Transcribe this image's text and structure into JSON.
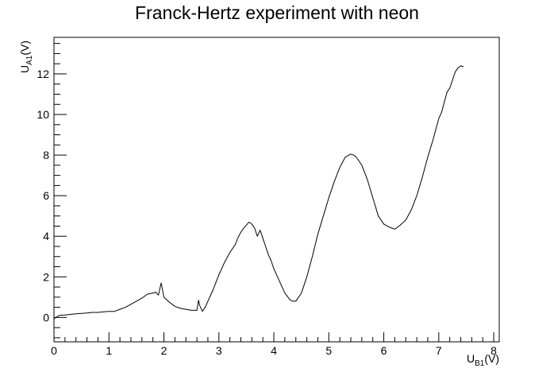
{
  "chart_data": {
    "type": "line",
    "title": "Franck-Hertz experiment with neon",
    "xlabel": {
      "main": "U",
      "sub": "B1",
      "unit": "(V)"
    },
    "ylabel": {
      "main": "U",
      "sub": "A1",
      "unit": "(V)"
    },
    "xlim": [
      0,
      8.1
    ],
    "ylim": [
      -1.2,
      13.8
    ],
    "x_ticks": [
      0,
      1,
      2,
      3,
      4,
      5,
      6,
      7,
      8
    ],
    "y_ticks": [
      0,
      2,
      4,
      6,
      8,
      10,
      12
    ],
    "grid": false,
    "line_color": "#000000",
    "series": [
      {
        "x": [
          0.0,
          0.1,
          0.2,
          0.3,
          0.4,
          0.5,
          0.6,
          0.7,
          0.8,
          0.9,
          1.0,
          1.1,
          1.2,
          1.3,
          1.4,
          1.5,
          1.6,
          1.7,
          1.8,
          1.85,
          1.9,
          1.95,
          2.0,
          2.1,
          2.2,
          2.3,
          2.4,
          2.5,
          2.6,
          2.63,
          2.65,
          2.7,
          2.75,
          2.8,
          2.9,
          3.0,
          3.1,
          3.2,
          3.3,
          3.35,
          3.4,
          3.45,
          3.5,
          3.55,
          3.6,
          3.65,
          3.7,
          3.75,
          3.8,
          3.85,
          3.9,
          3.95,
          4.0,
          4.1,
          4.2,
          4.3,
          4.35,
          4.4,
          4.5,
          4.6,
          4.7,
          4.8,
          4.9,
          5.0,
          5.1,
          5.2,
          5.3,
          5.4,
          5.45,
          5.5,
          5.6,
          5.7,
          5.8,
          5.9,
          6.0,
          6.1,
          6.2,
          6.25,
          6.3,
          6.4,
          6.5,
          6.6,
          6.7,
          6.8,
          6.9,
          7.0,
          7.05,
          7.1,
          7.15,
          7.2,
          7.25,
          7.3,
          7.35,
          7.4,
          7.45
        ],
        "y": [
          -0.05,
          0.1,
          0.12,
          0.15,
          0.18,
          0.2,
          0.22,
          0.25,
          0.25,
          0.28,
          0.3,
          0.3,
          0.4,
          0.5,
          0.65,
          0.8,
          0.95,
          1.15,
          1.2,
          1.25,
          1.1,
          1.7,
          1.0,
          0.75,
          0.55,
          0.45,
          0.4,
          0.35,
          0.35,
          0.85,
          0.6,
          0.3,
          0.5,
          0.8,
          1.4,
          2.1,
          2.7,
          3.2,
          3.6,
          3.95,
          4.2,
          4.4,
          4.55,
          4.7,
          4.6,
          4.4,
          4.0,
          4.3,
          3.9,
          3.5,
          3.1,
          2.8,
          2.4,
          1.8,
          1.2,
          0.85,
          0.8,
          0.8,
          1.2,
          2.0,
          3.0,
          4.1,
          5.0,
          5.9,
          6.7,
          7.4,
          7.9,
          8.05,
          8.0,
          7.9,
          7.5,
          6.8,
          5.9,
          5.0,
          4.6,
          4.45,
          4.35,
          4.45,
          4.55,
          4.8,
          5.3,
          6.0,
          6.9,
          7.9,
          8.8,
          9.8,
          10.1,
          10.6,
          11.1,
          11.3,
          11.7,
          12.1,
          12.3,
          12.4,
          12.35
        ]
      }
    ]
  }
}
